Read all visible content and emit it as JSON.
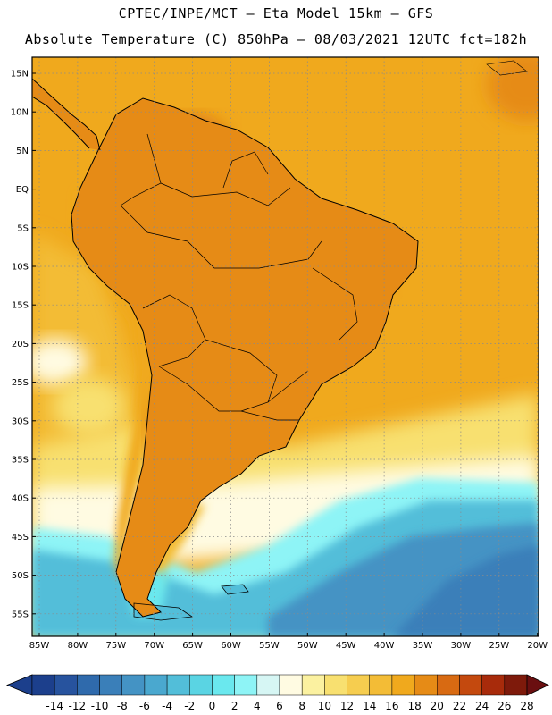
{
  "title_line1": "CPTEC/INPE/MCT —  Eta Model 15km — GFS",
  "title_line2": "Absolute Temperature (C) 850hPa — 08/03/2021 12UTC fct=182h",
  "lat_labels": [
    "15N",
    "10N",
    "5N",
    "EQ",
    "5S",
    "10S",
    "15S",
    "20S",
    "25S",
    "30S",
    "35S",
    "40S",
    "45S",
    "50S",
    "55S"
  ],
  "lon_labels": [
    "85W",
    "80W",
    "75W",
    "70W",
    "65W",
    "60W",
    "55W",
    "50W",
    "45W",
    "40W",
    "35W",
    "30W",
    "25W",
    "20W"
  ],
  "colorbar": {
    "labels": [
      "-14",
      "-12",
      "-10",
      "-8",
      "-6",
      "-4",
      "-2",
      "0",
      "2",
      "4",
      "6",
      "8",
      "10",
      "12",
      "14",
      "16",
      "18",
      "20",
      "22",
      "24",
      "26",
      "28"
    ],
    "colors": [
      "#1c3f8c",
      "#27539e",
      "#2f6aac",
      "#3a7fb9",
      "#4493c4",
      "#4aa8cf",
      "#52bed9",
      "#5ad4e3",
      "#6ae8ee",
      "#8ef4f6",
      "#d6f6f4",
      "#fffbe2",
      "#fbf1a0",
      "#f8e070",
      "#f6cd4f",
      "#f3bc36",
      "#f0a91d",
      "#e68b16",
      "#d86a12",
      "#c4490e",
      "#a82b0b",
      "#7e1a0b"
    ]
  },
  "colors": {
    "background": "#ffffff",
    "ocean_warm": "#f0a91d",
    "ocean_mid": "#f3bc36",
    "land_hot": "#e68b16",
    "land_hotter": "#d86a12",
    "cold_south": "#52bed9",
    "coastline": "#000000"
  }
}
